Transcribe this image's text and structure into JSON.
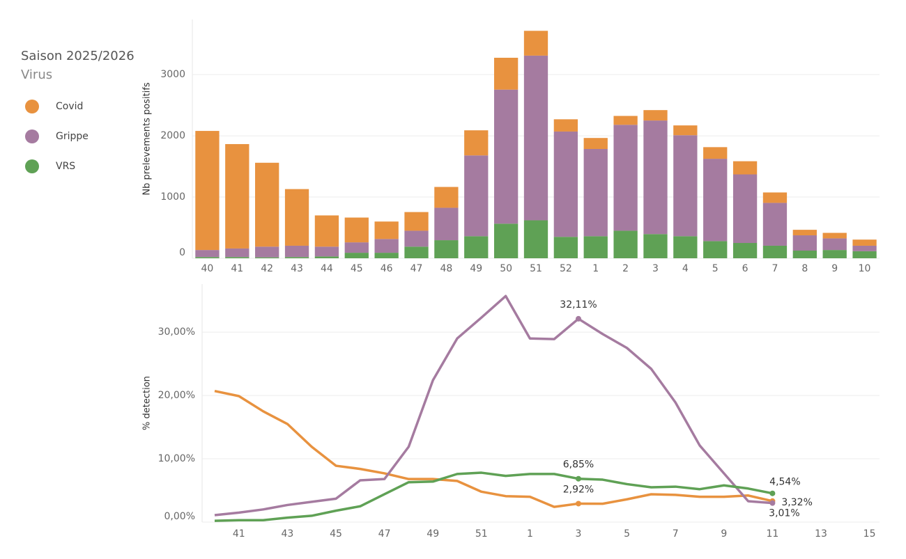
{
  "legend": {
    "title": "Saison 2025/2026",
    "subtitle": "Virus"
  },
  "chart_data": [
    {
      "type": "bar",
      "y_label": "Nb prelevements positifs",
      "categories": [
        "40",
        "41",
        "42",
        "43",
        "44",
        "45",
        "46",
        "47",
        "48",
        "49",
        "50",
        "51",
        "52",
        "1",
        "2",
        "3",
        "4",
        "5",
        "6",
        "7",
        "8",
        "9",
        "10"
      ],
      "series": [
        {
          "name": "Covid",
          "color": "#e8923f",
          "values": [
            1945,
            1705,
            1370,
            925,
            510,
            405,
            285,
            305,
            340,
            410,
            520,
            405,
            200,
            180,
            145,
            170,
            160,
            190,
            215,
            170,
            90,
            90,
            100
          ]
        },
        {
          "name": "Grippe",
          "color": "#a57ba0",
          "values": [
            115,
            140,
            175,
            185,
            160,
            170,
            225,
            260,
            530,
            1320,
            2190,
            2690,
            1720,
            1425,
            1730,
            1855,
            1650,
            1345,
            1120,
            700,
            250,
            190,
            90
          ]
        },
        {
          "name": "VRS",
          "color": "#5fa155",
          "values": [
            20,
            20,
            15,
            20,
            30,
            90,
            90,
            190,
            295,
            360,
            565,
            620,
            350,
            360,
            450,
            395,
            360,
            280,
            250,
            205,
            125,
            135,
            115
          ]
        }
      ],
      "ylim": [
        0,
        3900
      ],
      "yticks": [
        0,
        1000,
        2000,
        3000
      ],
      "grid": true
    },
    {
      "type": "line",
      "y_label": "% detection",
      "categories": [
        null,
        "41",
        null,
        "43",
        null,
        "45",
        null,
        "47",
        null,
        "49",
        null,
        "51",
        null,
        "1",
        null,
        "3",
        null,
        "5",
        null,
        "7",
        null,
        "9",
        null,
        "11",
        null,
        "13",
        null,
        "15"
      ],
      "series": [
        {
          "name": "Covid",
          "color": "#e8923f",
          "values": [
            20.7,
            19.9,
            17.5,
            15.5,
            11.9,
            8.9,
            8.4,
            7.7,
            6.8,
            6.8,
            6.5,
            4.8,
            4.1,
            4.0,
            2.4,
            2.92,
            2.9,
            3.6,
            4.4,
            4.3,
            4.0,
            4.0,
            4.2,
            3.32,
            null,
            null,
            null,
            null
          ],
          "value_labels": [
            null,
            null,
            null,
            null,
            null,
            null,
            null,
            null,
            null,
            null,
            null,
            null,
            null,
            null,
            null,
            "2,92%",
            null,
            null,
            null,
            null,
            null,
            null,
            null,
            "3,32%",
            null,
            null,
            null,
            null
          ]
        },
        {
          "name": "Grippe",
          "color": "#a57ba0",
          "values": [
            1.1,
            1.5,
            2.0,
            2.7,
            3.2,
            3.7,
            6.6,
            6.8,
            11.9,
            22.4,
            29.0,
            32.3,
            35.7,
            29.0,
            28.9,
            32.11,
            29.7,
            27.5,
            24.2,
            18.9,
            12.1,
            7.7,
            3.3,
            3.01,
            null,
            null,
            null,
            null
          ],
          "value_labels": [
            null,
            null,
            null,
            null,
            null,
            null,
            null,
            null,
            null,
            null,
            null,
            null,
            null,
            null,
            null,
            "32,11%",
            null,
            null,
            null,
            null,
            null,
            null,
            null,
            "3,01%",
            null,
            null,
            null,
            null
          ]
        },
        {
          "name": "VRS",
          "color": "#5fa155",
          "values": [
            0.2,
            0.3,
            0.3,
            0.7,
            1.0,
            1.8,
            2.5,
            4.4,
            6.3,
            6.4,
            7.6,
            7.8,
            7.3,
            7.6,
            7.6,
            6.85,
            6.7,
            6.0,
            5.5,
            5.6,
            5.2,
            5.8,
            5.3,
            4.54,
            null,
            null,
            null,
            null
          ],
          "value_labels": [
            null,
            null,
            null,
            null,
            null,
            null,
            null,
            null,
            null,
            null,
            null,
            null,
            null,
            null,
            null,
            "6,85%",
            null,
            null,
            null,
            null,
            null,
            null,
            null,
            "4,54%",
            null,
            null,
            null,
            null
          ]
        }
      ],
      "ylim": [
        0,
        37.6
      ],
      "yticks": [
        {
          "value": 0,
          "label": "0,00%"
        },
        {
          "value": 10,
          "label": "10,00%"
        },
        {
          "value": 20,
          "label": "20,00%"
        },
        {
          "value": 30,
          "label": "30,00%"
        }
      ],
      "grid": true
    }
  ]
}
